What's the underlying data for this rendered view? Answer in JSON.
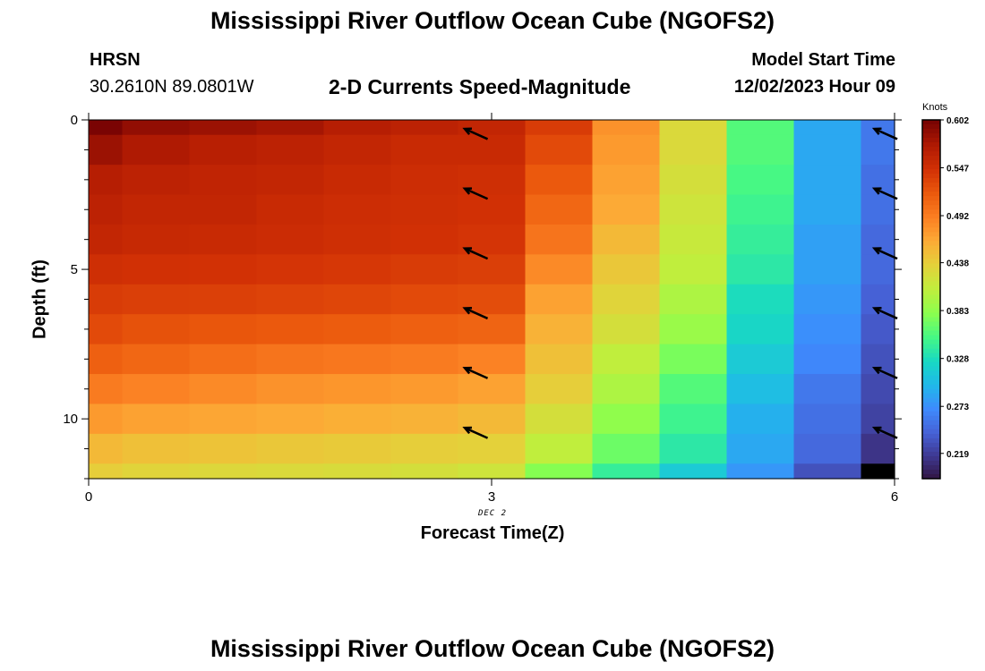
{
  "title": "Mississippi River Outflow Ocean Cube (NGOFS2)",
  "title_bottom": "Mississippi River Outflow Ocean Cube (NGOFS2)",
  "station": {
    "name": "HRSN",
    "coords": "30.2610N  89.0801W"
  },
  "subtitle": "2-D Currents Speed-Magnitude",
  "model_start": {
    "label": "Model Start Time",
    "value": "12/02/2023 Hour 09"
  },
  "colors": {
    "ramp": [
      "#30123b",
      "#3e378f",
      "#4661d6",
      "#3e8bfd",
      "#20b8ea",
      "#18d9c3",
      "#46f884",
      "#8bff4e",
      "#c0ee3d",
      "#e3d23a",
      "#fcab36",
      "#fb7f22",
      "#eb5a0d",
      "#d23105",
      "#b01a03",
      "#7a0403"
    ],
    "min_cell": "#000000",
    "arrows": "#000000"
  },
  "chart_data": {
    "type": "heatmap",
    "xlabel": "Forecast Time(Z)",
    "ylabel": "Depth (ft)",
    "x_ticks": [
      "0",
      "3",
      "6"
    ],
    "y_ticks": [
      "0",
      "5",
      "10"
    ],
    "xlim": [
      0,
      6
    ],
    "ylim": [
      0,
      12
    ],
    "y_inverted": true,
    "date_label": "DEC 2",
    "colorbar": {
      "unit": "Knots",
      "ticks": [
        "0.602",
        "0.547",
        "0.492",
        "0.438",
        "0.383",
        "0.328",
        "0.273",
        "0.219"
      ],
      "min": 0.19,
      "max": 0.602
    },
    "x_edges": [
      0,
      0.25,
      0.75,
      1.25,
      1.75,
      2.25,
      2.75,
      3.25,
      3.75,
      4.25,
      4.75,
      5.25,
      5.75,
      6.0
    ],
    "depth_edges": [
      0,
      0.5,
      1.5,
      2.5,
      3.5,
      4.5,
      5.5,
      6.5,
      7.5,
      8.5,
      9.5,
      10.5,
      11.5,
      12.0
    ],
    "values": [
      [
        0.602,
        0.59,
        0.585,
        0.58,
        0.57,
        0.565,
        0.56,
        0.54,
        0.48,
        0.43,
        0.36,
        0.29,
        0.26
      ],
      [
        0.585,
        0.575,
        0.568,
        0.565,
        0.56,
        0.555,
        0.555,
        0.53,
        0.475,
        0.43,
        0.36,
        0.29,
        0.26
      ],
      [
        0.57,
        0.565,
        0.562,
        0.56,
        0.555,
        0.552,
        0.55,
        0.52,
        0.47,
        0.425,
        0.355,
        0.29,
        0.255
      ],
      [
        0.565,
        0.56,
        0.56,
        0.555,
        0.552,
        0.55,
        0.548,
        0.51,
        0.465,
        0.42,
        0.35,
        0.29,
        0.255
      ],
      [
        0.56,
        0.557,
        0.555,
        0.553,
        0.55,
        0.548,
        0.545,
        0.5,
        0.455,
        0.415,
        0.345,
        0.285,
        0.25
      ],
      [
        0.55,
        0.548,
        0.547,
        0.545,
        0.543,
        0.54,
        0.538,
        0.485,
        0.445,
        0.41,
        0.34,
        0.285,
        0.25
      ],
      [
        0.54,
        0.538,
        0.537,
        0.535,
        0.533,
        0.53,
        0.528,
        0.47,
        0.435,
        0.4,
        0.33,
        0.28,
        0.245
      ],
      [
        0.53,
        0.525,
        0.522,
        0.52,
        0.518,
        0.515,
        0.512,
        0.46,
        0.425,
        0.39,
        0.325,
        0.275,
        0.24
      ],
      [
        0.515,
        0.51,
        0.505,
        0.5,
        0.498,
        0.495,
        0.49,
        0.45,
        0.41,
        0.375,
        0.315,
        0.27,
        0.235
      ],
      [
        0.495,
        0.49,
        0.485,
        0.48,
        0.478,
        0.475,
        0.47,
        0.44,
        0.4,
        0.36,
        0.305,
        0.26,
        0.23
      ],
      [
        0.475,
        0.47,
        0.468,
        0.465,
        0.462,
        0.46,
        0.455,
        0.425,
        0.385,
        0.35,
        0.295,
        0.255,
        0.225
      ],
      [
        0.455,
        0.45,
        0.448,
        0.445,
        0.443,
        0.44,
        0.438,
        0.41,
        0.37,
        0.34,
        0.29,
        0.25,
        0.215
      ],
      [
        0.44,
        0.435,
        0.432,
        0.43,
        0.428,
        0.425,
        0.42,
        0.38,
        0.345,
        0.315,
        0.28,
        0.235,
        0.19
      ]
    ],
    "vectors": [
      {
        "time": 2.8,
        "depth": 0.3
      },
      {
        "time": 2.8,
        "depth": 2.3
      },
      {
        "time": 2.8,
        "depth": 4.3
      },
      {
        "time": 2.8,
        "depth": 6.3
      },
      {
        "time": 2.8,
        "depth": 8.3
      },
      {
        "time": 2.8,
        "depth": 10.3
      },
      {
        "time": 5.85,
        "depth": 0.3
      },
      {
        "time": 5.85,
        "depth": 2.3
      },
      {
        "time": 5.85,
        "depth": 4.3
      },
      {
        "time": 5.85,
        "depth": 6.3
      },
      {
        "time": 5.85,
        "depth": 8.3
      },
      {
        "time": 5.85,
        "depth": 10.3
      }
    ]
  }
}
